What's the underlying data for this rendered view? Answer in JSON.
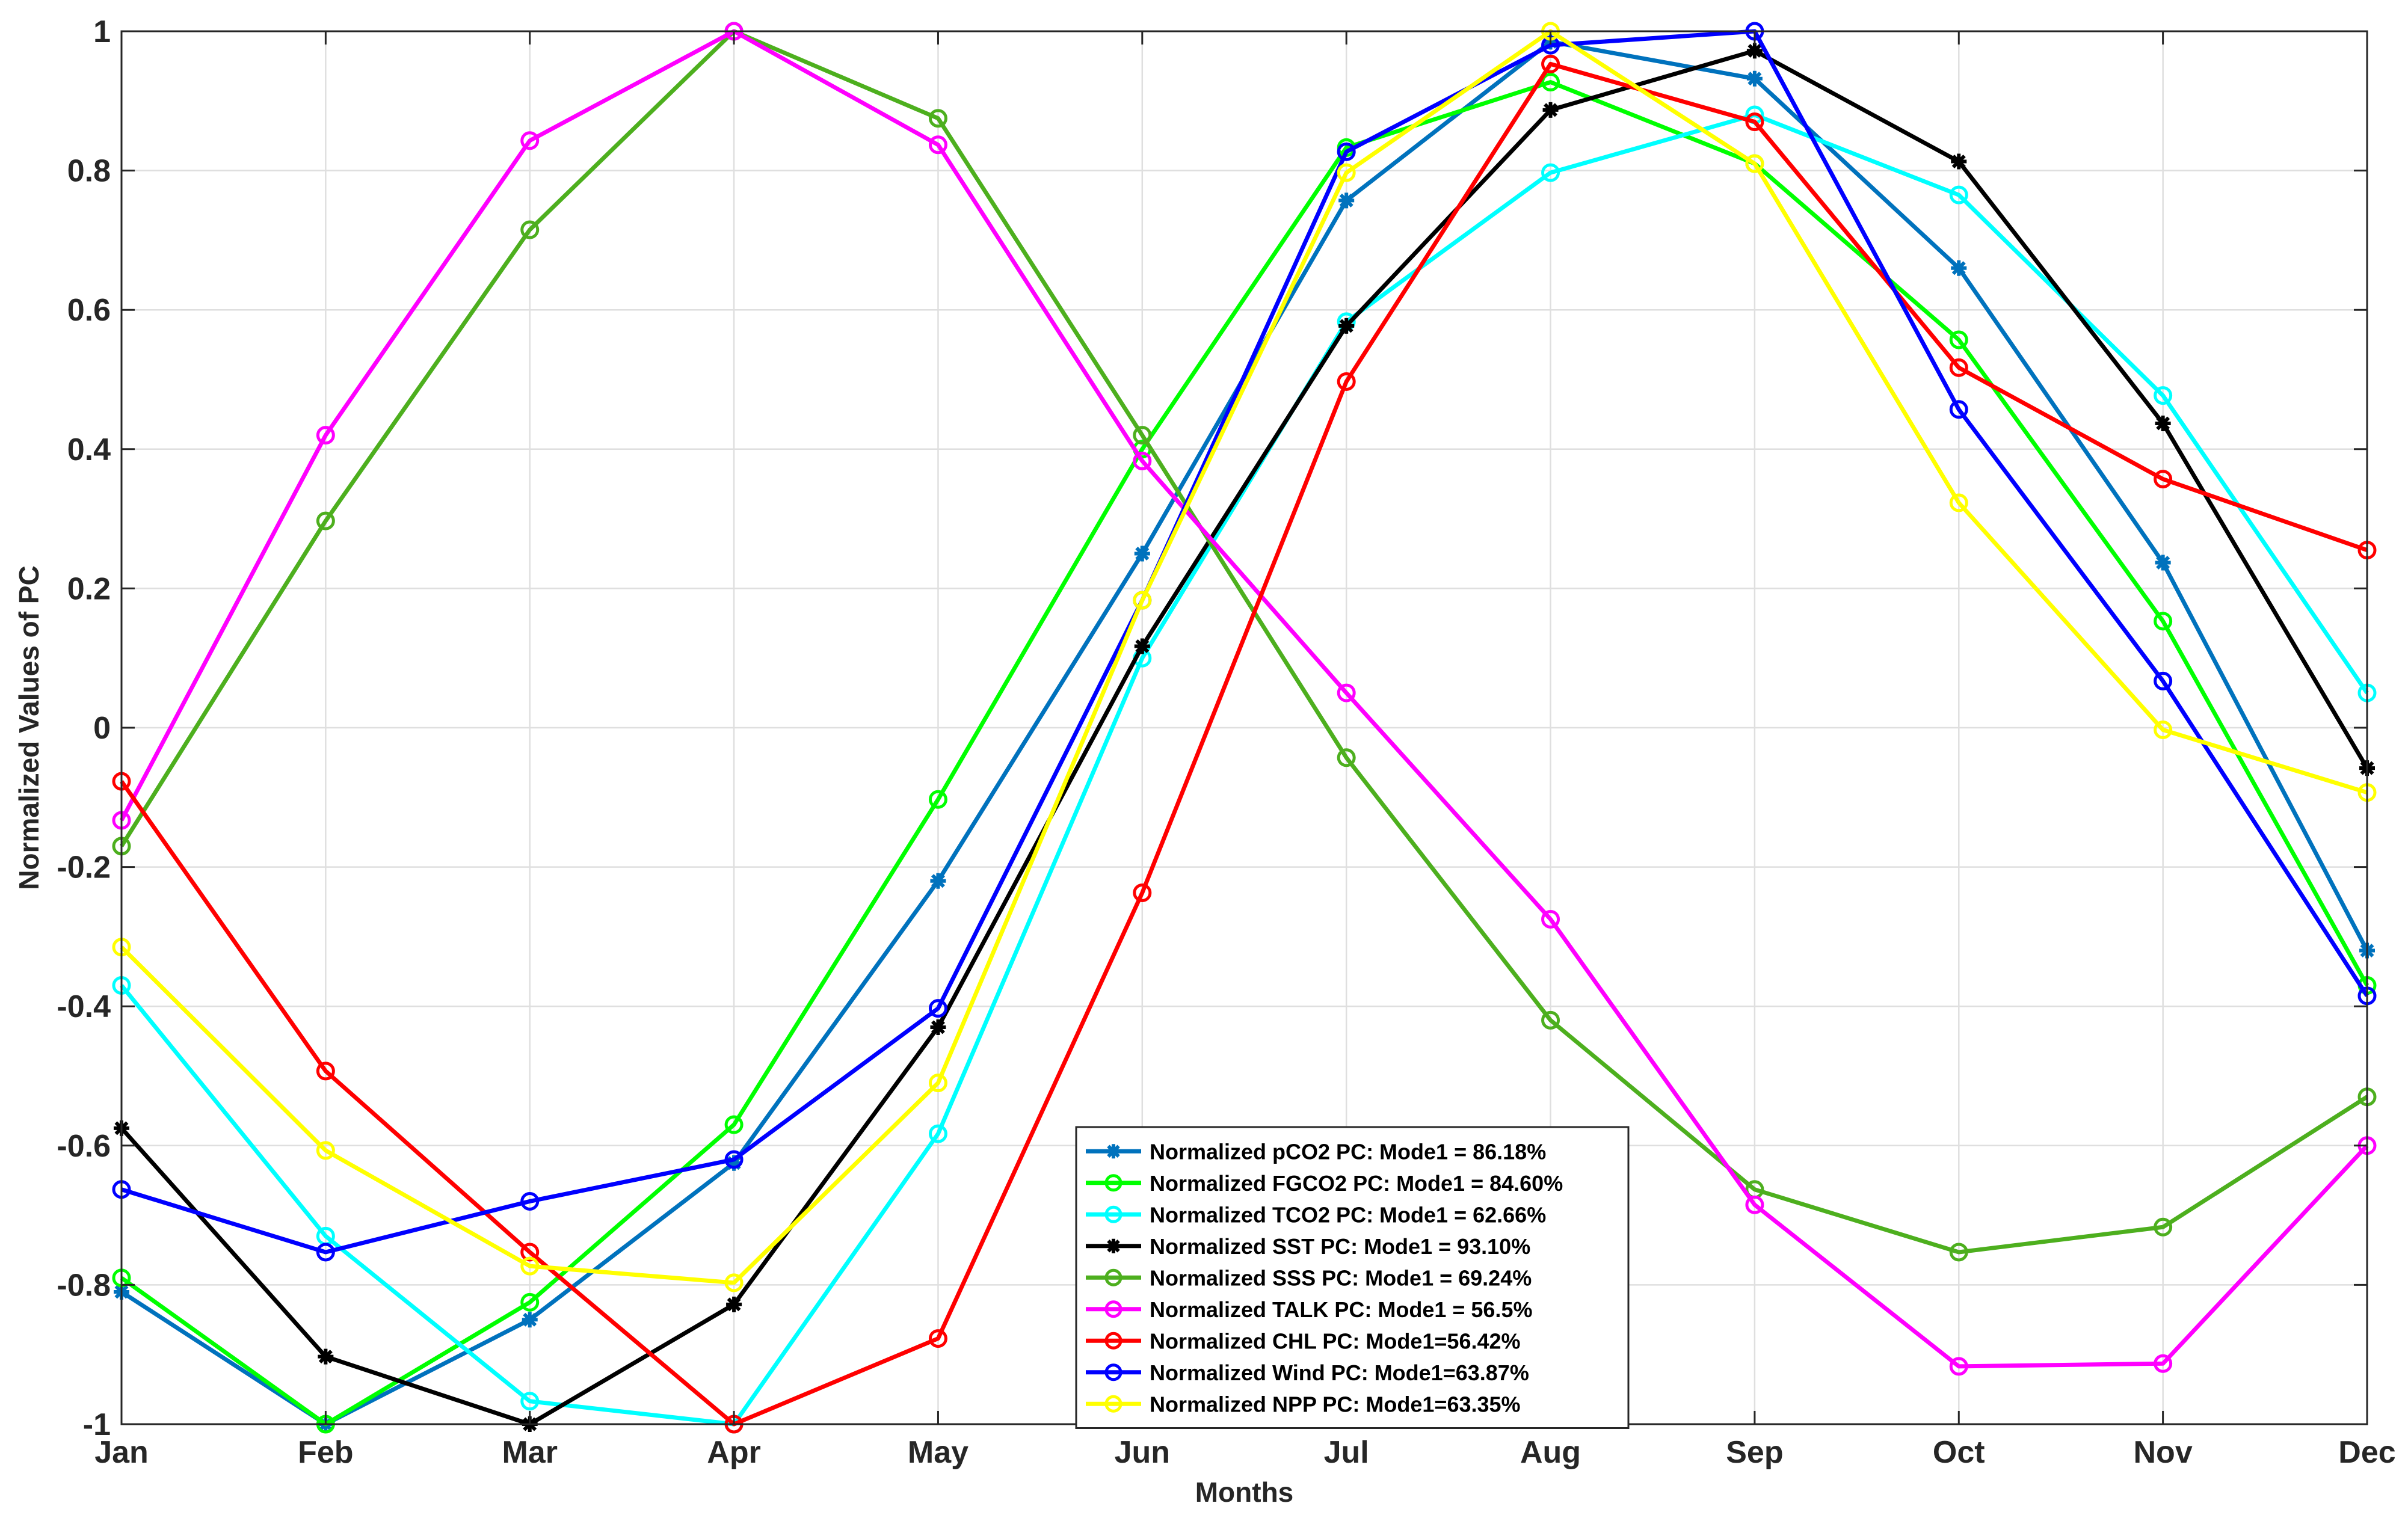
{
  "chart_data": {
    "type": "line",
    "title": "",
    "xlabel": "Months",
    "ylabel": "Normalized Values of PC",
    "categories": [
      "Jan",
      "Feb",
      "Mar",
      "Apr",
      "May",
      "Jun",
      "Jul",
      "Aug",
      "Sep",
      "Oct",
      "Nov",
      "Dec"
    ],
    "ylim": [
      -1,
      1
    ],
    "yticks": [
      "1",
      "0.8",
      "0.6",
      "0.4",
      "0.2",
      "0",
      "-0.2",
      "-0.4",
      "-0.6",
      "-0.8",
      "-1"
    ],
    "grid": true,
    "legend_position": "bottom-center",
    "series": [
      {
        "name": "Normalized pCO2 PC: Mode1 = 86.18%",
        "color": "#0072BD",
        "marker": "star",
        "values": [
          -0.81,
          -1.0,
          -0.85,
          -0.625,
          -0.22,
          0.25,
          0.757,
          0.985,
          0.932,
          0.66,
          0.237,
          -0.32
        ]
      },
      {
        "name": "Normalized FGCO2 PC: Mode1 = 84.60%",
        "color": "#00FF00",
        "marker": "circle",
        "values": [
          -0.79,
          -1.0,
          -0.825,
          -0.57,
          -0.103,
          0.4,
          0.833,
          0.927,
          0.81,
          0.557,
          0.153,
          -0.37
        ]
      },
      {
        "name": "Normalized TCO2 PC: Mode1 = 62.66%",
        "color": "#00FFFF",
        "marker": "circle",
        "values": [
          -0.37,
          -0.73,
          -0.967,
          -1.0,
          -0.583,
          0.1,
          0.583,
          0.797,
          0.88,
          0.765,
          0.477,
          0.05
        ]
      },
      {
        "name": "Normalized SST PC: Mode1 = 93.10%",
        "color": "#000000",
        "marker": "star",
        "values": [
          -0.575,
          -0.903,
          -1.0,
          -0.828,
          -0.43,
          0.117,
          0.577,
          0.887,
          0.972,
          0.813,
          0.437,
          -0.058
        ]
      },
      {
        "name": "Normalized SSS PC: Mode1 = 69.24%",
        "color": "#4DAF1E",
        "marker": "circle",
        "values": [
          -0.17,
          0.297,
          0.715,
          1.0,
          0.875,
          0.42,
          -0.043,
          -0.42,
          -0.663,
          -0.753,
          -0.717,
          -0.53
        ]
      },
      {
        "name": "Normalized TALK PC: Mode1 = 56.5%",
        "color": "#FF00FF",
        "marker": "circle",
        "values": [
          -0.133,
          0.42,
          0.843,
          1.0,
          0.837,
          0.383,
          0.05,
          -0.275,
          -0.685,
          -0.917,
          -0.913,
          -0.6
        ]
      },
      {
        "name": "Normalized CHL PC: Mode1=56.42%",
        "color": "#FF0000",
        "marker": "circle",
        "values": [
          -0.077,
          -0.493,
          -0.753,
          -1.0,
          -0.877,
          -0.237,
          0.497,
          0.953,
          0.87,
          0.517,
          0.357,
          0.255
        ]
      },
      {
        "name": "Normalized Wind PC: Mode1=63.87%",
        "color": "#0000FF",
        "marker": "circle",
        "values": [
          -0.663,
          -0.753,
          -0.68,
          -0.62,
          -0.403,
          0.183,
          0.827,
          0.98,
          1.0,
          0.457,
          0.067,
          -0.385
        ]
      },
      {
        "name": "Normalized NPP PC: Mode1=63.35%",
        "color": "#FFFF00",
        "marker": "circle",
        "values": [
          -0.315,
          -0.607,
          -0.773,
          -0.797,
          -0.51,
          0.183,
          0.797,
          1.0,
          0.81,
          0.323,
          -0.003,
          -0.093
        ]
      }
    ]
  }
}
